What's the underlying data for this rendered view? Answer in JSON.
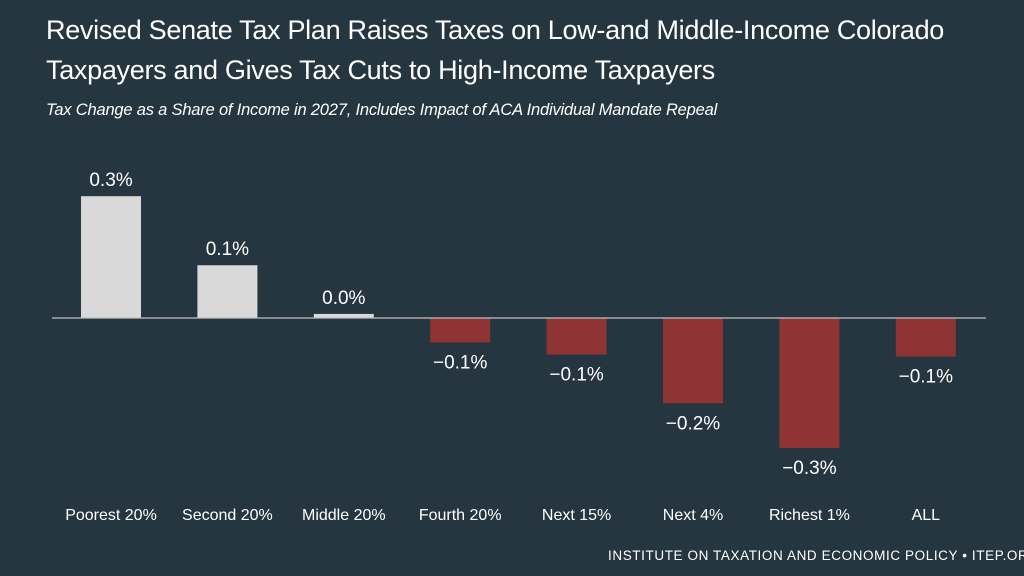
{
  "title": "Revised Senate Tax Plan Raises Taxes on Low-and Middle-Income Colorado Taxpayers and Gives Tax Cuts to High-Income Taxpayers",
  "subtitle": "Tax Change as a Share of Income in 2027, Includes Impact of ACA Individual Mandate Repeal",
  "footer": "INSTITUTE ON TAXATION AND ECONOMIC POLICY • ITEP.ORG",
  "colors": {
    "background": "#263640",
    "positive_bar": "#d9d9d9",
    "negative_bar": "#8e3434",
    "axis": "#bfbfbf",
    "text": "#ffffff"
  },
  "chart_data": {
    "type": "bar",
    "title": "Revised Senate Tax Plan Raises Taxes on Low-and Middle-Income Colorado Taxpayers and Gives Tax Cuts to High-Income Taxpayers",
    "subtitle": "Tax Change as a Share of Income in 2027, Includes Impact of ACA Individual Mandate Repeal",
    "xlabel": "",
    "ylabel": "",
    "categories": [
      "Poorest 20%",
      "Second 20%",
      "Middle 20%",
      "Fourth 20%",
      "Next 15%",
      "Next 4%",
      "Richest 1%",
      "ALL"
    ],
    "values": [
      0.3,
      0.13,
      0.01,
      -0.06,
      -0.09,
      -0.21,
      -0.32,
      -0.095
    ],
    "labels": [
      "0.3%",
      "0.1%",
      "0.0%",
      "−0.1%",
      "−0.1%",
      "−0.2%",
      "−0.3%",
      "−0.1%"
    ],
    "ylim": [
      -0.35,
      0.35
    ],
    "grid": false,
    "legend": "none"
  }
}
